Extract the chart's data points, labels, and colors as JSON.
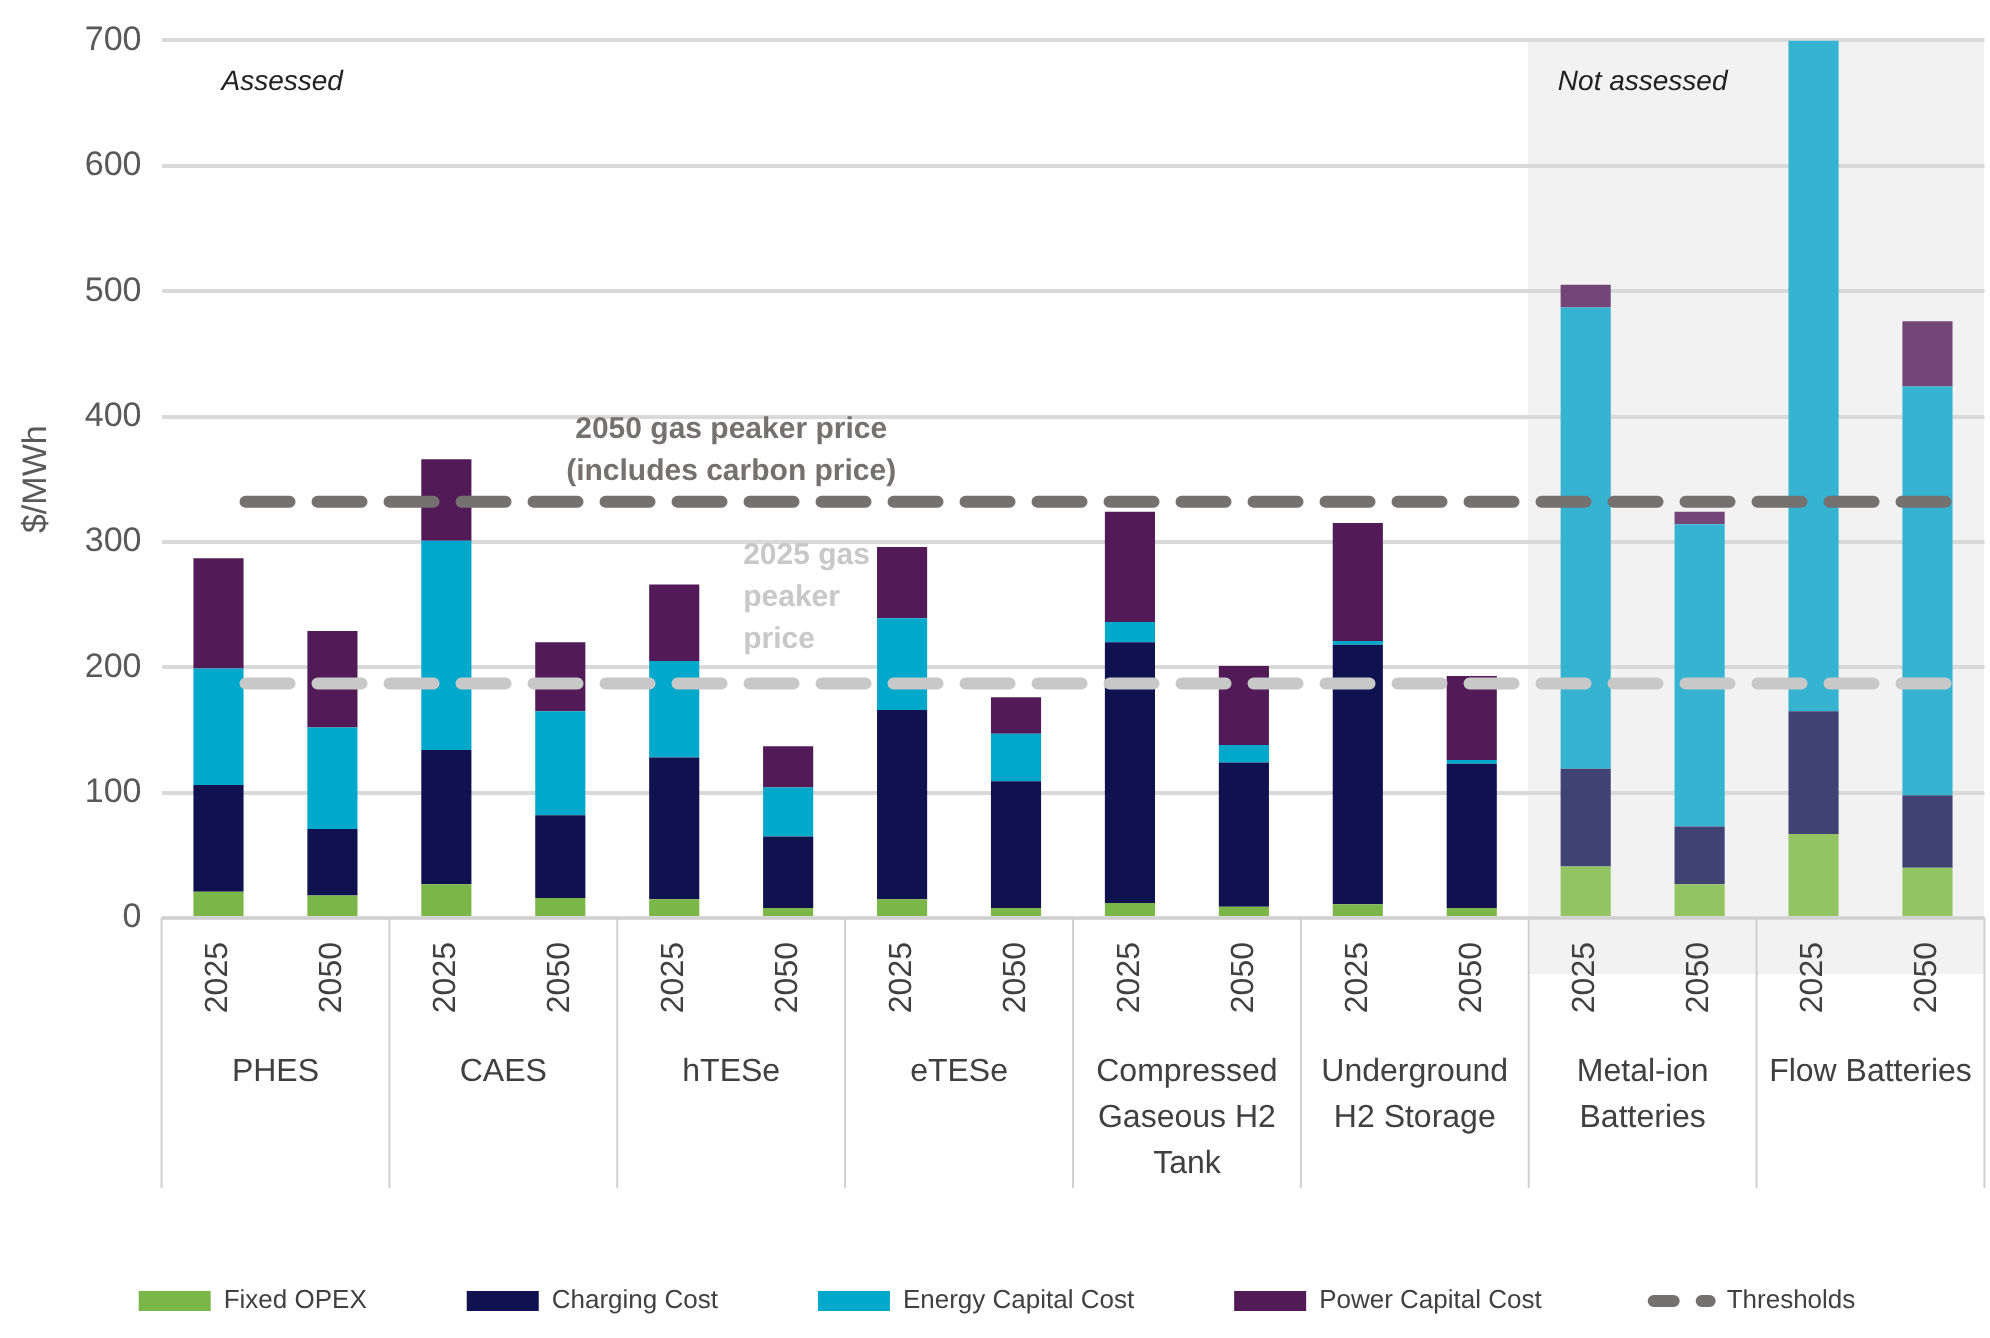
{
  "chart_data": {
    "type": "bar",
    "stacked": true,
    "ylabel": "$/MWh",
    "ylim": [
      0,
      700
    ],
    "yticks": [
      0,
      100,
      200,
      300,
      400,
      500,
      600,
      700
    ],
    "grid": "y",
    "legend": "bottom",
    "legend_title": "Thresholds",
    "categories": [
      "2025",
      "2050",
      "2025",
      "2050",
      "2025",
      "2050",
      "2025",
      "2050",
      "2025",
      "2050",
      "2025",
      "2050",
      "2025",
      "2050",
      "2025",
      "2050"
    ],
    "series": [
      {
        "name": "Fixed OPEX",
        "color": "#7ab648",
        "colors": [
          "#7ab648",
          "#7ab648",
          "#7ab648",
          "#7ab648",
          "#7ab648",
          "#7ab648",
          "#7ab648",
          "#7ab648",
          "#7ab648",
          "#7ab648",
          "#7ab648",
          "#7ab648",
          "#92c464",
          "#92c464",
          "#92c464",
          "#92c464"
        ],
        "values": [
          21,
          18,
          27,
          16,
          15,
          8,
          15,
          8,
          12,
          9,
          11,
          8,
          41,
          27,
          67,
          40
        ]
      },
      {
        "name": "Charging Cost",
        "color": "#10114f",
        "colors": [
          "#10114f",
          "#10114f",
          "#10114f",
          "#10114f",
          "#10114f",
          "#10114f",
          "#10114f",
          "#10114f",
          "#10114f",
          "#10114f",
          "#10114f",
          "#10114f",
          "#414274",
          "#414274",
          "#414274",
          "#414274"
        ],
        "values": [
          85,
          53,
          107,
          66,
          113,
          57,
          151,
          101,
          208,
          115,
          207,
          115,
          78,
          46,
          98,
          58
        ]
      },
      {
        "name": "Energy Capital Cost",
        "color": "#00a9cc",
        "colors": [
          "#00a9cc",
          "#00a9cc",
          "#00a9cc",
          "#00a9cc",
          "#00a9cc",
          "#00a9cc",
          "#00a9cc",
          "#00a9cc",
          "#00a9cc",
          "#00a9cc",
          "#00a9cc",
          "#00a9cc",
          "#35b3d0",
          "#35b3d0",
          "#35b3d0",
          "#35b3d0"
        ],
        "values": [
          93,
          81,
          167,
          83,
          77,
          39,
          73,
          38,
          16,
          14,
          3,
          3,
          368,
          241,
          535,
          326
        ]
      },
      {
        "name": "Power Capital Cost",
        "color": "#521b58",
        "colors": [
          "#521b58",
          "#521b58",
          "#521b58",
          "#521b58",
          "#521b58",
          "#521b58",
          "#521b58",
          "#521b58",
          "#521b58",
          "#521b58",
          "#521b58",
          "#521b58",
          "#744677",
          "#744677",
          "#744677",
          "#744677"
        ],
        "values": [
          88,
          77,
          65,
          55,
          61,
          33,
          57,
          29,
          88,
          63,
          94,
          67,
          18,
          10,
          null,
          52
        ]
      }
    ],
    "ref_lines": [
      {
        "axis": "y",
        "value": 332,
        "label": "2050 gas peaker price\n(includes carbon price)",
        "color": "#767171",
        "line_style": "dashed"
      },
      {
        "axis": "y",
        "value": 187,
        "label": "2025 gas\npeaker\nprice",
        "color": "#c8c8c8",
        "line_style": "dashed"
      }
    ],
    "annotations": [
      "Assessed",
      "Not assessed",
      "PHES",
      "CAES",
      "hTESe",
      "eTESe",
      "Compressed Gaseous H2 Tank",
      "Underground H2 Storage",
      "Metal-ion Batteries",
      "Flow Batteries"
    ]
  }
}
